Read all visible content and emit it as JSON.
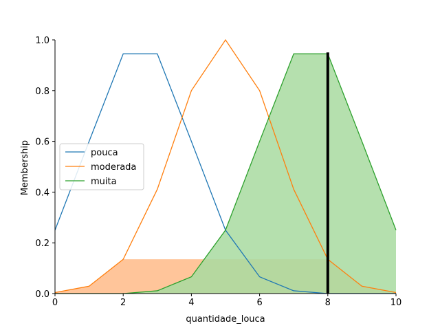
{
  "chart_data": {
    "type": "line",
    "title": "",
    "xlabel": "quantidade_louca",
    "ylabel": "Membership",
    "xlim": [
      0,
      10
    ],
    "ylim": [
      0,
      1.0
    ],
    "x_ticks": [
      "0",
      "2",
      "4",
      "6",
      "8",
      "10"
    ],
    "y_ticks": [
      "0.0",
      "0.2",
      "0.4",
      "0.6",
      "0.8",
      "1.0"
    ],
    "x": [
      0,
      1,
      2,
      3,
      4,
      5,
      6,
      7,
      8,
      9,
      10
    ],
    "series": [
      {
        "name": "pouca",
        "color": "#1f77b4",
        "values": [
          0.25,
          0.6,
          0.945,
          0.945,
          0.6,
          0.25,
          0.066,
          0.011,
          0.0,
          0.0,
          0.0
        ]
      },
      {
        "name": "moderada",
        "color": "#ff7f0e",
        "values": [
          0.004,
          0.029,
          0.135,
          0.411,
          0.8,
          1.0,
          0.8,
          0.411,
          0.135,
          0.029,
          0.004
        ]
      },
      {
        "name": "muita",
        "color": "#2ca02c",
        "values": [
          0.0,
          0.0,
          0.0,
          0.011,
          0.066,
          0.25,
          0.6,
          0.945,
          0.945,
          0.6,
          0.25
        ]
      }
    ],
    "activated_regions": [
      {
        "series": "moderada",
        "color": "#ffbb88",
        "level": 0.135
      },
      {
        "series": "muita",
        "color": "#a8dba0",
        "level": 0.945
      }
    ],
    "input_marker": {
      "x": 8,
      "color": "#000000"
    },
    "legend": {
      "placement": "center-left"
    },
    "grid": false
  }
}
